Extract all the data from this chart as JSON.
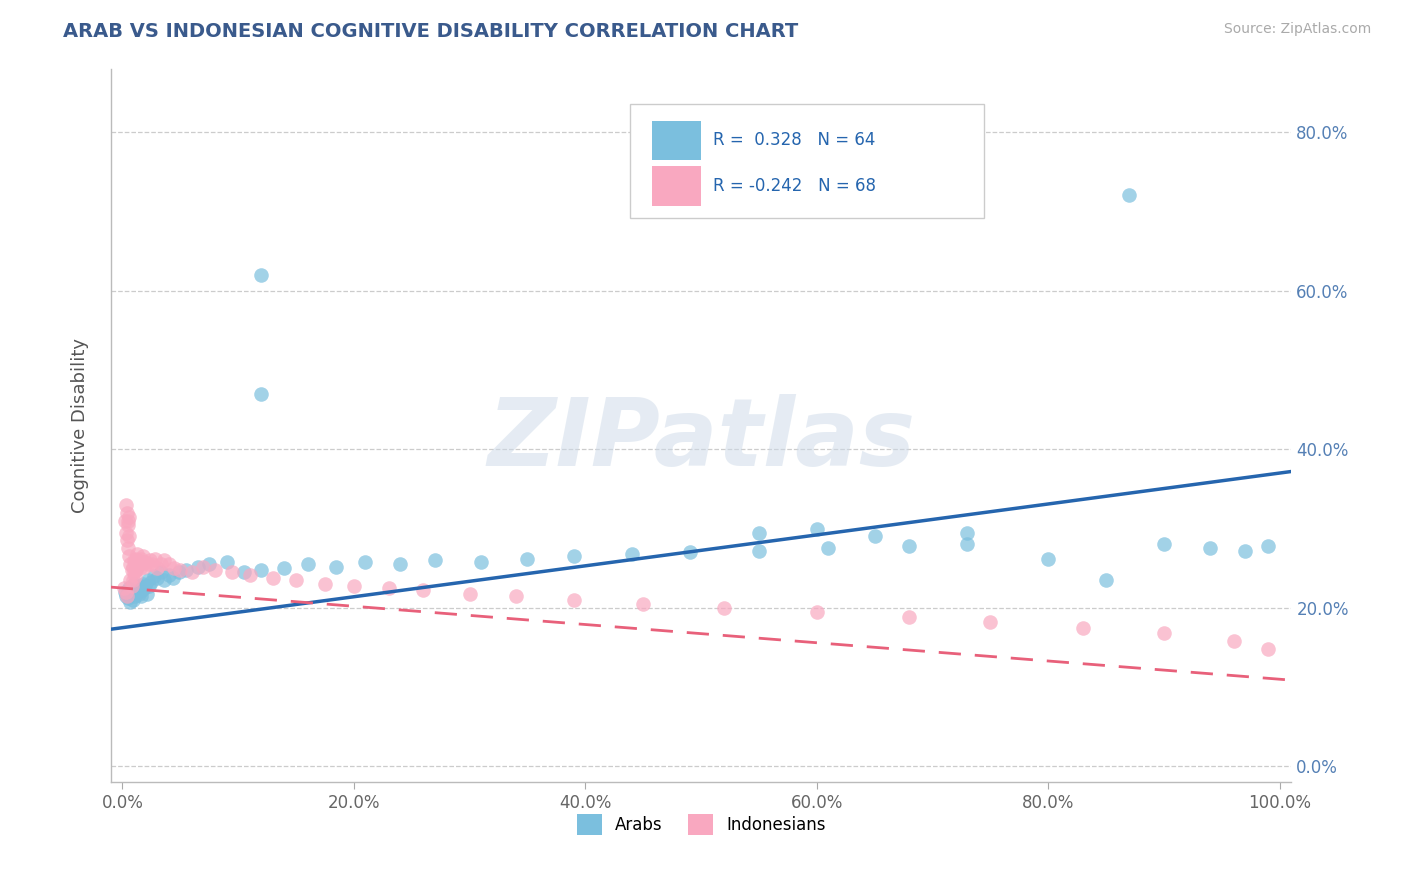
{
  "title": "ARAB VS INDONESIAN COGNITIVE DISABILITY CORRELATION CHART",
  "source": "Source: ZipAtlas.com",
  "ylabel": "Cognitive Disability",
  "watermark": "ZIPatlas",
  "arab_R": 0.328,
  "arab_N": 64,
  "indo_R": -0.242,
  "indo_N": 68,
  "arab_color": "#7bbfde",
  "indo_color": "#f9a8c0",
  "arab_line_color": "#2565ae",
  "indo_line_color": "#e8607a",
  "background": "#ffffff",
  "xlim": [
    -0.01,
    1.01
  ],
  "ylim": [
    -0.02,
    0.88
  ],
  "arab_slope": 0.195,
  "arab_intercept": 0.175,
  "indo_slope": -0.115,
  "indo_intercept": 0.225,
  "arab_x": [
    0.002,
    0.003,
    0.004,
    0.005,
    0.006,
    0.007,
    0.008,
    0.009,
    0.01,
    0.011,
    0.012,
    0.013,
    0.014,
    0.015,
    0.016,
    0.017,
    0.018,
    0.019,
    0.02,
    0.021,
    0.022,
    0.023,
    0.025,
    0.027,
    0.03,
    0.033,
    0.036,
    0.04,
    0.044,
    0.049,
    0.055,
    0.065,
    0.075,
    0.09,
    0.105,
    0.12,
    0.14,
    0.16,
    0.185,
    0.21,
    0.24,
    0.27,
    0.31,
    0.35,
    0.39,
    0.44,
    0.49,
    0.55,
    0.61,
    0.68,
    0.73,
    0.8,
    0.85,
    0.9,
    0.94,
    0.97,
    0.99,
    0.12,
    0.12,
    0.87,
    0.55,
    0.6,
    0.65,
    0.73
  ],
  "arab_y": [
    0.22,
    0.215,
    0.218,
    0.212,
    0.225,
    0.208,
    0.222,
    0.21,
    0.23,
    0.215,
    0.22,
    0.225,
    0.218,
    0.228,
    0.215,
    0.222,
    0.23,
    0.225,
    0.228,
    0.218,
    0.235,
    0.228,
    0.232,
    0.24,
    0.238,
    0.245,
    0.235,
    0.242,
    0.238,
    0.245,
    0.248,
    0.252,
    0.255,
    0.258,
    0.245,
    0.248,
    0.25,
    0.255,
    0.252,
    0.258,
    0.255,
    0.26,
    0.258,
    0.262,
    0.265,
    0.268,
    0.27,
    0.272,
    0.275,
    0.278,
    0.28,
    0.262,
    0.235,
    0.28,
    0.275,
    0.272,
    0.278,
    0.62,
    0.47,
    0.72,
    0.295,
    0.3,
    0.29,
    0.295
  ],
  "indo_x": [
    0.001,
    0.002,
    0.003,
    0.003,
    0.004,
    0.004,
    0.005,
    0.005,
    0.006,
    0.006,
    0.007,
    0.007,
    0.008,
    0.008,
    0.009,
    0.009,
    0.01,
    0.01,
    0.011,
    0.011,
    0.012,
    0.012,
    0.013,
    0.013,
    0.014,
    0.015,
    0.016,
    0.017,
    0.018,
    0.019,
    0.02,
    0.022,
    0.024,
    0.026,
    0.028,
    0.03,
    0.033,
    0.036,
    0.04,
    0.045,
    0.05,
    0.06,
    0.07,
    0.08,
    0.095,
    0.11,
    0.13,
    0.15,
    0.175,
    0.2,
    0.23,
    0.26,
    0.3,
    0.34,
    0.39,
    0.45,
    0.52,
    0.6,
    0.68,
    0.75,
    0.83,
    0.9,
    0.96,
    0.99,
    0.003,
    0.004,
    0.005,
    0.006
  ],
  "indo_y": [
    0.225,
    0.31,
    0.22,
    0.295,
    0.215,
    0.285,
    0.31,
    0.275,
    0.29,
    0.265,
    0.235,
    0.255,
    0.228,
    0.248,
    0.235,
    0.252,
    0.245,
    0.26,
    0.24,
    0.258,
    0.248,
    0.262,
    0.252,
    0.268,
    0.255,
    0.25,
    0.262,
    0.258,
    0.265,
    0.252,
    0.258,
    0.255,
    0.26,
    0.255,
    0.262,
    0.25,
    0.255,
    0.26,
    0.255,
    0.25,
    0.248,
    0.245,
    0.252,
    0.248,
    0.245,
    0.242,
    0.238,
    0.235,
    0.23,
    0.228,
    0.225,
    0.222,
    0.218,
    0.215,
    0.21,
    0.205,
    0.2,
    0.195,
    0.188,
    0.182,
    0.175,
    0.168,
    0.158,
    0.148,
    0.33,
    0.32,
    0.305,
    0.315
  ],
  "yticks": [
    0.0,
    0.2,
    0.4,
    0.6,
    0.8
  ],
  "ytick_labels": [
    "0.0%",
    "20.0%",
    "40.0%",
    "60.0%",
    "80.0%"
  ],
  "xticks": [
    0.0,
    0.2,
    0.4,
    0.6,
    0.8,
    1.0
  ],
  "xtick_labels": [
    "0.0%",
    "20.0%",
    "40.0%",
    "60.0%",
    "80.0%",
    "100.0%"
  ]
}
